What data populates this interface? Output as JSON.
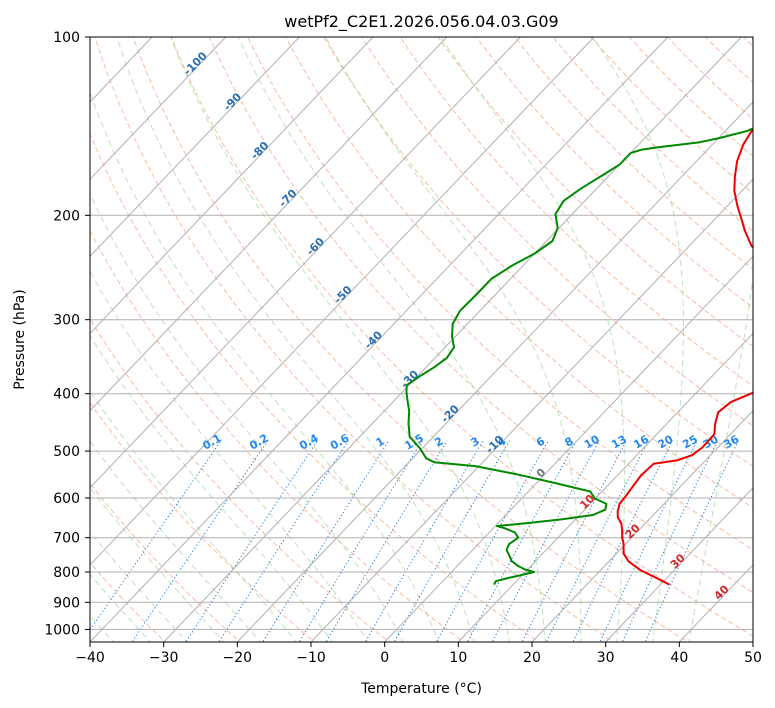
{
  "chart_data": {
    "type": "line",
    "title": "wetPf2_C2E1.2026.056.04.03.G09",
    "xlabel": "Temperature (°C)",
    "ylabel": "Pressure (hPa)",
    "xlim": [
      -40,
      50
    ],
    "ylim": [
      1050,
      100
    ],
    "y_scale": "log",
    "x_ticks": [
      -40,
      -30,
      -20,
      -10,
      0,
      10,
      20,
      30,
      40,
      50
    ],
    "y_ticks": [
      100,
      200,
      300,
      400,
      500,
      600,
      700,
      800,
      900,
      1000
    ],
    "grid": true,
    "skew_t": true,
    "series": [
      {
        "color": "#ee0000",
        "points": [
          [
            31.2,
            840
          ],
          [
            29.0,
            822
          ],
          [
            25.5,
            795
          ],
          [
            22.7,
            768
          ],
          [
            21.0,
            745
          ],
          [
            19.6,
            715
          ],
          [
            18.7,
            700
          ],
          [
            17.9,
            683
          ],
          [
            16.8,
            663
          ],
          [
            15.5,
            647
          ],
          [
            14.7,
            632
          ],
          [
            14.0,
            614
          ],
          [
            13.8,
            594
          ],
          [
            13.5,
            572
          ],
          [
            13.2,
            550
          ],
          [
            13.4,
            525
          ],
          [
            16.2,
            518
          ],
          [
            17.5,
            508
          ],
          [
            17.9,
            493
          ],
          [
            17.8,
            468
          ],
          [
            16.6,
            450
          ],
          [
            15.5,
            430
          ],
          [
            15.9,
            413
          ],
          [
            17.5,
            400
          ],
          [
            18.9,
            389
          ],
          [
            17.8,
            378
          ],
          [
            16.4,
            367
          ],
          [
            16.0,
            358
          ],
          [
            17.1,
            345
          ],
          [
            17.7,
            329
          ],
          [
            17.1,
            315
          ],
          [
            14.5,
            299
          ],
          [
            12.0,
            287
          ],
          [
            8.4,
            274
          ],
          [
            6.2,
            263
          ],
          [
            4.5,
            250
          ],
          [
            1.6,
            237
          ],
          [
            -1.6,
            225
          ],
          [
            -4.5,
            212
          ],
          [
            -6.6,
            202
          ],
          [
            -8.6,
            193
          ],
          [
            -11.0,
            182
          ],
          [
            -12.8,
            172
          ],
          [
            -14.5,
            162
          ],
          [
            -15.8,
            152
          ],
          [
            -16.6,
            142
          ],
          [
            -16.9,
            133
          ],
          [
            -17.4,
            123
          ],
          [
            -17.8,
            117
          ]
        ]
      },
      {
        "color": "#008800",
        "points": [
          [
            7.4,
            840
          ],
          [
            7.2,
            829
          ],
          [
            8.4,
            819
          ],
          [
            9.5,
            812
          ],
          [
            11.2,
            800
          ],
          [
            9.6,
            792
          ],
          [
            8.2,
            781
          ],
          [
            6.7,
            766
          ],
          [
            5.5,
            747
          ],
          [
            4.6,
            734
          ],
          [
            4.2,
            718
          ],
          [
            4.6,
            700
          ],
          [
            3.5,
            686
          ],
          [
            1.6,
            675
          ],
          [
            0.2,
            669
          ],
          [
            3.8,
            662
          ],
          [
            8.1,
            652
          ],
          [
            11.8,
            641
          ],
          [
            12.8,
            628
          ],
          [
            12.2,
            614
          ],
          [
            9.9,
            601
          ],
          [
            8.4,
            585
          ],
          [
            2.5,
            566
          ],
          [
            -3.5,
            548
          ],
          [
            -10.5,
            530
          ],
          [
            -16.6,
            522
          ],
          [
            -18.2,
            514
          ],
          [
            -20.4,
            494
          ],
          [
            -23.2,
            473
          ],
          [
            -25.1,
            449
          ],
          [
            -26.6,
            428
          ],
          [
            -28.0,
            413
          ],
          [
            -29.4,
            398
          ],
          [
            -30.3,
            387
          ],
          [
            -29.7,
            374
          ],
          [
            -28.9,
            361
          ],
          [
            -28.4,
            348
          ],
          [
            -28.8,
            334
          ],
          [
            -30.5,
            320
          ],
          [
            -32.0,
            305
          ],
          [
            -32.7,
            290
          ],
          [
            -32.6,
            272
          ],
          [
            -32.6,
            256
          ],
          [
            -31.5,
            243
          ],
          [
            -30.0,
            232
          ],
          [
            -29.2,
            221
          ],
          [
            -30.2,
            210
          ],
          [
            -32.3,
            199
          ],
          [
            -32.9,
            189
          ],
          [
            -32.1,
            180
          ],
          [
            -30.9,
            171
          ],
          [
            -30.0,
            164
          ],
          [
            -30.0,
            157
          ],
          [
            -29.0,
            155
          ],
          [
            -27.0,
            153.5
          ],
          [
            -24.5,
            152
          ],
          [
            -22.0,
            150.5
          ],
          [
            -19.8,
            148
          ],
          [
            -17.0,
            144
          ],
          [
            -15.5,
            139
          ],
          [
            -14.5,
            135
          ],
          [
            -14.2,
            130
          ],
          [
            -12.0,
            125
          ],
          [
            -10.5,
            120
          ],
          [
            -9.5,
            116
          ],
          [
            -9.8,
            111
          ],
          [
            -10.7,
            106
          ],
          [
            -11.0,
            101
          ],
          [
            -11.0,
            100
          ]
        ]
      }
    ],
    "dry_adiabat_labels": [
      "-100",
      "-90",
      "-80",
      "-70",
      "-60",
      "-50",
      "-40",
      "-30",
      "-20",
      "-10",
      "0",
      "10",
      "20",
      "30",
      "40"
    ],
    "mixing_ratio_labels": [
      "0.1",
      "0.2",
      "0.4",
      "0.6",
      "1",
      "1.5",
      "2",
      "3",
      "4",
      "6",
      "8",
      "10",
      "13",
      "16",
      "20",
      "25",
      "30",
      "36"
    ]
  }
}
